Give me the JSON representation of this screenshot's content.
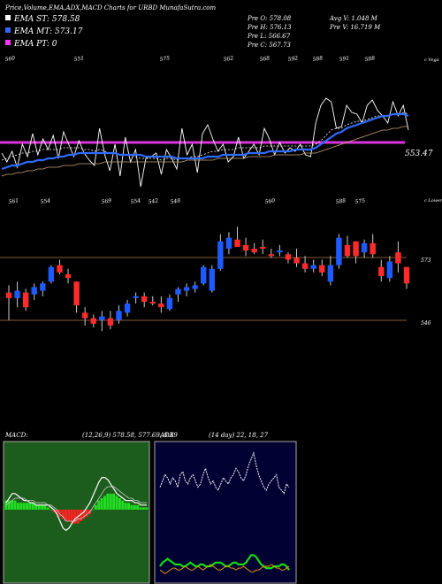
{
  "header": {
    "title": "Price,Volume,EMA,ADX,MACD Charts for URBD MunafaSutra.com",
    "legend": [
      {
        "label": "EMA ST: 578.58",
        "color": "#ffffff"
      },
      {
        "label": "EMA MT: 573.17",
        "color": "#3366ff"
      },
      {
        "label": "EMA PT: 0",
        "color": "#ff33ff"
      }
    ],
    "stats": [
      [
        "Pre  O: 578.08",
        "Avg V: 1.048  M"
      ],
      [
        "Pre  H: 576.13",
        "Pre  V: 16.719  M"
      ],
      [
        "Pre  L: 566.67",
        ""
      ],
      [
        "Pre  C: 567.73",
        ""
      ]
    ]
  },
  "colors": {
    "up": "#1e5bff",
    "down": "#ff2a2a",
    "ema_short": "#ffffff",
    "ema_mid": "#2f6bff",
    "ema_long": "#c9a27a",
    "support": "#dd33dd",
    "macd_green": "#22dd22",
    "macd_red": "#ff2222",
    "adx_white": "#ffffff",
    "adx_green": "#11dd11",
    "adx_orange": "#ff9900",
    "panel_border": "#aaaaaa",
    "level_line": "#8a5a3a",
    "macd_panel_bg": "#1c5c1c",
    "adx_panel_bg": "#000033"
  },
  "chart_data": [
    {
      "type": "line",
      "name": "ema-panel",
      "top_labels": [
        "560",
        "551",
        "575",
        "562",
        "568",
        "592",
        "588",
        "591",
        "588"
      ],
      "bottom_labels": [
        "561",
        "554",
        "569",
        "554",
        "542",
        "548",
        "560"
      ],
      "top_right_label": "c Vega",
      "support_value": "553.47",
      "x": [
        1,
        2,
        3,
        4,
        5,
        6,
        7,
        8,
        9,
        10,
        11,
        12,
        13,
        14,
        15,
        16,
        17,
        18,
        19,
        20,
        21,
        22,
        23,
        24,
        25,
        26,
        27,
        28,
        29,
        30,
        31,
        32,
        33,
        34,
        35,
        36,
        37,
        38,
        39,
        40,
        41,
        42,
        43,
        44,
        45,
        46,
        47,
        48,
        49,
        50,
        51,
        52,
        53,
        54,
        55,
        56,
        57,
        58,
        59,
        60,
        61,
        62,
        63,
        64,
        65,
        66,
        67,
        68,
        69,
        70,
        71,
        72,
        73,
        74,
        75,
        76,
        77,
        78,
        79,
        80
      ],
      "series": [
        {
          "key": "price",
          "values": [
            561,
            556,
            562,
            553,
            566,
            559,
            572,
            560,
            569,
            563,
            571,
            558,
            573,
            566,
            559,
            568,
            561,
            557,
            554,
            575,
            560,
            551,
            566,
            548,
            570,
            556,
            563,
            542,
            558,
            559,
            561,
            549,
            563,
            558,
            552,
            575,
            560,
            566,
            550,
            572,
            577,
            569,
            562,
            566,
            556,
            559,
            570,
            558,
            562,
            566,
            560,
            575,
            569,
            560,
            567,
            561,
            564,
            562,
            566,
            560,
            559,
            578,
            588,
            592,
            590,
            575,
            576,
            588,
            584,
            583,
            578,
            588,
            591,
            585,
            582,
            578,
            590,
            582,
            588,
            574
          ]
        },
        {
          "key": "ema_short",
          "values": [
            557,
            558,
            559,
            560,
            561,
            561,
            562,
            562,
            563,
            563,
            563,
            563,
            564,
            564,
            564,
            564,
            563,
            563,
            562,
            563,
            562,
            561,
            561,
            560,
            560,
            560,
            559,
            558,
            558,
            558,
            558,
            557,
            558,
            558,
            557,
            558,
            558,
            559,
            559,
            560,
            561,
            562,
            562,
            563,
            563,
            563,
            564,
            564,
            564,
            564,
            564,
            565,
            565,
            565,
            565,
            565,
            565,
            565,
            565,
            565,
            565,
            566,
            568,
            571,
            574,
            575,
            575,
            577,
            578,
            579,
            579,
            580,
            581,
            582,
            582,
            582,
            583,
            583,
            584,
            583
          ]
        },
        {
          "key": "ema_mid",
          "values": [
            552,
            553,
            554,
            554,
            555,
            556,
            556,
            557,
            557,
            558,
            558,
            559,
            559,
            560,
            560,
            561,
            561,
            561,
            561,
            561,
            561,
            561,
            561,
            560,
            560,
            560,
            560,
            560,
            559,
            559,
            559,
            559,
            559,
            559,
            558,
            558,
            558,
            558,
            558,
            558,
            559,
            559,
            559,
            560,
            560,
            560,
            560,
            560,
            561,
            561,
            561,
            561,
            562,
            562,
            562,
            562,
            562,
            563,
            563,
            563,
            563,
            564,
            566,
            568,
            570,
            572,
            573,
            575,
            576,
            577,
            578,
            579,
            580,
            581,
            582,
            582,
            583,
            583,
            583,
            582
          ]
        },
        {
          "key": "ema_long",
          "values": [
            548,
            549,
            549,
            550,
            550,
            551,
            551,
            552,
            552,
            553,
            553,
            553,
            554,
            554,
            554,
            555,
            555,
            555,
            555,
            555,
            556,
            556,
            556,
            556,
            556,
            556,
            556,
            556,
            556,
            556,
            556,
            556,
            556,
            556,
            556,
            556,
            557,
            557,
            557,
            557,
            557,
            557,
            558,
            558,
            558,
            558,
            558,
            558,
            559,
            559,
            559,
            559,
            559,
            560,
            560,
            560,
            560,
            560,
            560,
            561,
            561,
            561,
            562,
            563,
            564,
            565,
            566,
            567,
            568,
            569,
            570,
            571,
            572,
            573,
            574,
            574,
            575,
            575,
            576,
            576
          ]
        }
      ]
    },
    {
      "type": "bar",
      "name": "candlestick-panel",
      "right_label": "c Lower",
      "top_labels": [
        "588",
        "575"
      ],
      "level_labels": [
        "573",
        "546"
      ],
      "level_values": [
        573,
        546
      ],
      "candles": [
        {
          "o": 560,
          "h": 564,
          "l": 545,
          "c": 557
        },
        {
          "o": 557,
          "h": 566,
          "l": 552,
          "c": 561
        },
        {
          "o": 560,
          "h": 562,
          "l": 550,
          "c": 552
        },
        {
          "o": 559,
          "h": 565,
          "l": 556,
          "c": 563
        },
        {
          "o": 561,
          "h": 566,
          "l": 558,
          "c": 565
        },
        {
          "o": 566,
          "h": 575,
          "l": 565,
          "c": 574
        },
        {
          "o": 575,
          "h": 578,
          "l": 570,
          "c": 571
        },
        {
          "o": 570,
          "h": 573,
          "l": 565,
          "c": 568
        },
        {
          "o": 566,
          "h": 566,
          "l": 549,
          "c": 553
        },
        {
          "o": 549,
          "h": 552,
          "l": 542,
          "c": 546
        },
        {
          "o": 546,
          "h": 548,
          "l": 541,
          "c": 543
        },
        {
          "o": 545,
          "h": 550,
          "l": 539,
          "c": 547
        },
        {
          "o": 546,
          "h": 550,
          "l": 540,
          "c": 542
        },
        {
          "o": 545,
          "h": 553,
          "l": 543,
          "c": 550
        },
        {
          "o": 549,
          "h": 556,
          "l": 547,
          "c": 554
        },
        {
          "o": 557,
          "h": 560,
          "l": 554,
          "c": 558
        },
        {
          "o": 558,
          "h": 560,
          "l": 552,
          "c": 555
        },
        {
          "o": 555,
          "h": 558,
          "l": 553,
          "c": 554
        },
        {
          "o": 554,
          "h": 558,
          "l": 549,
          "c": 552
        },
        {
          "o": 551,
          "h": 559,
          "l": 550,
          "c": 557
        },
        {
          "o": 559,
          "h": 563,
          "l": 555,
          "c": 562
        },
        {
          "o": 561,
          "h": 565,
          "l": 558,
          "c": 563
        },
        {
          "o": 562,
          "h": 566,
          "l": 560,
          "c": 564
        },
        {
          "o": 565,
          "h": 575,
          "l": 564,
          "c": 574
        },
        {
          "o": 561,
          "h": 575,
          "l": 560,
          "c": 573
        },
        {
          "o": 573,
          "h": 592,
          "l": 572,
          "c": 588
        },
        {
          "o": 584,
          "h": 593,
          "l": 581,
          "c": 590
        },
        {
          "o": 589,
          "h": 596,
          "l": 585,
          "c": 585
        },
        {
          "o": 586,
          "h": 590,
          "l": 580,
          "c": 583
        },
        {
          "o": 584,
          "h": 587,
          "l": 581,
          "c": 582
        },
        {
          "o": 585,
          "h": 589,
          "l": 581,
          "c": 584
        },
        {
          "o": 581,
          "h": 584,
          "l": 579,
          "c": 580
        },
        {
          "o": 582,
          "h": 586,
          "l": 580,
          "c": 583
        },
        {
          "o": 581,
          "h": 582,
          "l": 576,
          "c": 578
        },
        {
          "o": 579,
          "h": 584,
          "l": 574,
          "c": 576
        },
        {
          "o": 576,
          "h": 580,
          "l": 571,
          "c": 573
        },
        {
          "o": 573,
          "h": 578,
          "l": 571,
          "c": 575
        },
        {
          "o": 575,
          "h": 578,
          "l": 569,
          "c": 571
        },
        {
          "o": 566,
          "h": 580,
          "l": 564,
          "c": 575
        },
        {
          "o": 575,
          "h": 592,
          "l": 573,
          "c": 590
        },
        {
          "o": 586,
          "h": 591,
          "l": 579,
          "c": 580
        },
        {
          "o": 588,
          "h": 588,
          "l": 576,
          "c": 580
        },
        {
          "o": 582,
          "h": 589,
          "l": 579,
          "c": 587
        },
        {
          "o": 587,
          "h": 592,
          "l": 579,
          "c": 581
        },
        {
          "o": 574,
          "h": 578,
          "l": 566,
          "c": 569
        },
        {
          "o": 568,
          "h": 580,
          "l": 566,
          "c": 577
        },
        {
          "o": 582,
          "h": 588,
          "l": 571,
          "c": 576
        },
        {
          "o": 574,
          "h": 574,
          "l": 562,
          "c": 565
        }
      ]
    },
    {
      "type": "area",
      "name": "macd-panel",
      "title": "MACD",
      "values_text": "(12,26,9) 578.58, 577.69, 0.89",
      "histogram": [
        4,
        4,
        4,
        4,
        3,
        3,
        3,
        3,
        3,
        3,
        2,
        2,
        2,
        2,
        1,
        0,
        -1,
        -2,
        -3,
        -4,
        -5,
        -5,
        -6,
        -6,
        -6,
        -5,
        -4,
        -3,
        -2,
        0,
        2,
        4,
        5,
        6,
        7,
        7,
        7,
        6,
        5,
        4,
        3,
        3,
        2,
        2,
        2,
        1,
        1,
        1
      ],
      "macd_line": [
        3,
        5,
        7,
        7,
        6,
        5,
        4,
        4,
        3,
        3,
        2,
        2,
        2,
        2,
        2,
        1,
        0,
        -2,
        -5,
        -8,
        -9,
        -8,
        -6,
        -4,
        -3,
        -2,
        -1,
        1,
        3,
        6,
        9,
        12,
        14,
        14,
        13,
        11,
        9,
        7,
        6,
        5,
        4,
        4,
        4,
        3,
        3,
        2,
        2,
        2
      ],
      "signal_line": [
        2,
        3,
        4,
        5,
        5,
        5,
        5,
        4,
        4,
        4,
        3,
        3,
        3,
        3,
        2,
        2,
        1,
        0,
        -2,
        -3,
        -5,
        -5,
        -5,
        -5,
        -4,
        -4,
        -3,
        -2,
        -1,
        1,
        3,
        5,
        7,
        9,
        10,
        10,
        10,
        9,
        8,
        7,
        6,
        5,
        5,
        4,
        4,
        3,
        3,
        3
      ]
    },
    {
      "type": "line",
      "name": "adx-panel",
      "title": "ADX",
      "values_text": "(14 day) 22, 18, 27",
      "series": [
        {
          "key": "adx",
          "values": [
            27,
            29,
            31,
            30,
            28,
            30,
            29,
            27,
            31,
            32,
            29,
            28,
            30,
            31,
            29,
            27,
            28,
            31,
            33,
            30,
            28,
            29,
            27,
            26,
            28,
            30,
            29,
            28,
            30,
            31,
            33,
            32,
            30,
            29,
            31,
            34,
            36,
            38,
            34,
            31,
            29,
            27,
            26,
            28,
            29,
            30,
            31,
            27,
            26,
            25,
            28,
            27
          ]
        },
        {
          "key": "plus_di",
          "values": [
            8,
            10,
            11,
            12,
            11,
            10,
            9,
            9,
            9,
            8,
            8,
            9,
            10,
            9,
            8,
            8,
            9,
            9,
            8,
            8,
            8,
            9,
            10,
            10,
            10,
            9,
            8,
            8,
            9,
            10,
            10,
            9,
            9,
            9,
            10,
            12,
            14,
            14,
            13,
            11,
            9,
            8,
            7,
            7,
            7,
            8,
            8,
            8,
            9,
            9,
            8,
            6
          ]
        },
        {
          "key": "minus_di",
          "values": [
            6,
            5,
            4,
            5,
            6,
            7,
            7,
            6,
            6,
            7,
            8,
            7,
            6,
            6,
            7,
            8,
            7,
            6,
            7,
            8,
            9,
            8,
            7,
            6,
            6,
            7,
            8,
            8,
            7,
            7,
            6,
            7,
            7,
            8,
            7,
            6,
            5,
            5,
            6,
            6,
            7,
            8,
            8,
            8,
            9,
            8,
            7,
            7,
            6,
            6,
            7,
            8
          ]
        }
      ]
    }
  ]
}
